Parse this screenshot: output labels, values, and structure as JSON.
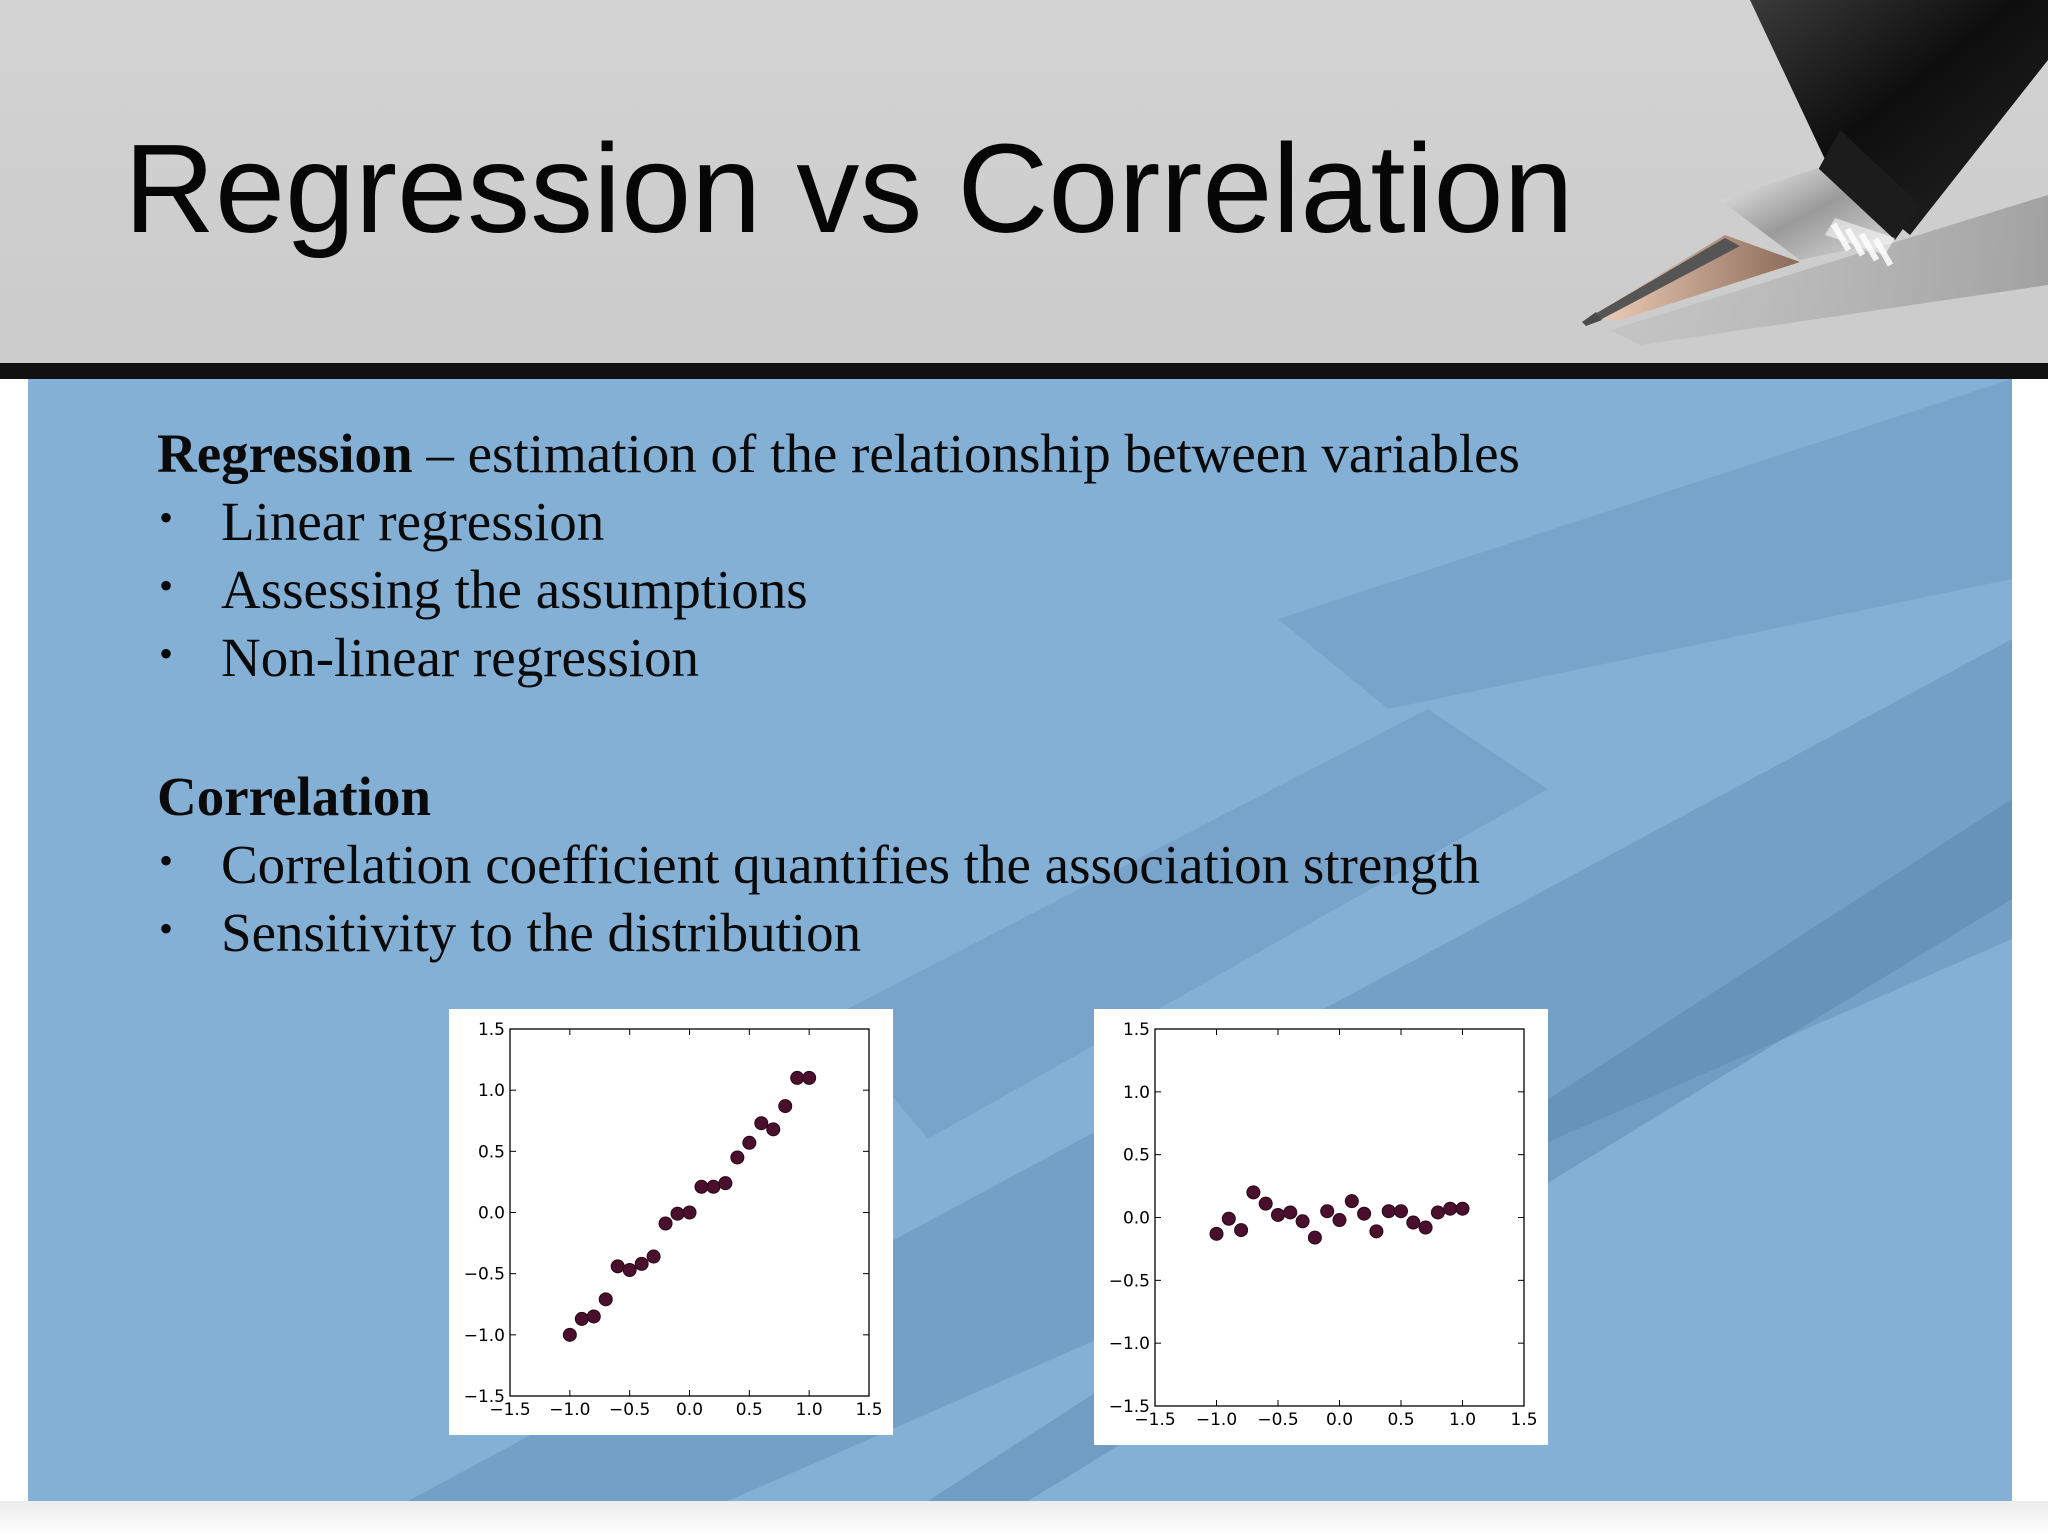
{
  "slide": {
    "title": "Regression vs Correlation",
    "colors": {
      "header": "#cdcdcd",
      "panel": "#84b0d6",
      "text": "#0a0a0a",
      "marker": "#4a0f2d"
    },
    "decorative_image": "fountain-pen"
  },
  "regression": {
    "heading": "Regression",
    "definition": " – estimation of the relationship between variables",
    "bullets": [
      "Linear regression",
      "Assessing the assumptions",
      "Non-linear regression"
    ]
  },
  "correlation": {
    "heading": "Correlation",
    "bullets": [
      "Correlation coefficient quantifies the association strength",
      "Sensitivity to the distribution"
    ]
  },
  "chart_data": [
    {
      "type": "scatter",
      "title": "",
      "xlabel": "",
      "ylabel": "",
      "xlim": [
        -1.5,
        1.5
      ],
      "ylim": [
        -1.5,
        1.5
      ],
      "xticks": [
        "−1.5",
        "−1.0",
        "−0.5",
        "0.0",
        "0.5",
        "1.0",
        "1.5"
      ],
      "yticks": [
        "−1.5",
        "−1.0",
        "−0.5",
        "0.0",
        "0.5",
        "1.0",
        "1.5"
      ],
      "grid": false,
      "marker_color": "#4a0f2d",
      "series": [
        {
          "x": [
            -1.0,
            -0.9,
            -0.8,
            -0.7,
            -0.6,
            -0.5,
            -0.4,
            -0.3,
            -0.2,
            -0.1,
            0.0,
            0.1,
            0.2,
            0.3,
            0.4,
            0.5,
            0.6,
            0.7,
            0.8,
            0.9,
            1.0
          ],
          "y": [
            -1.0,
            -0.87,
            -0.85,
            -0.71,
            -0.44,
            -0.47,
            -0.42,
            -0.36,
            -0.09,
            -0.01,
            0.0,
            0.21,
            0.21,
            0.24,
            0.45,
            0.57,
            0.73,
            0.68,
            0.87,
            1.1,
            1.1
          ]
        }
      ]
    },
    {
      "type": "scatter",
      "title": "",
      "xlabel": "",
      "ylabel": "",
      "xlim": [
        -1.5,
        1.5
      ],
      "ylim": [
        -1.5,
        1.5
      ],
      "xticks": [
        "−1.5",
        "−1.0",
        "−0.5",
        "0.0",
        "0.5",
        "1.0",
        "1.5"
      ],
      "yticks": [
        "−1.5",
        "−1.0",
        "−0.5",
        "0.0",
        "0.5",
        "1.0",
        "1.5"
      ],
      "grid": false,
      "marker_color": "#4a0f2d",
      "series": [
        {
          "x": [
            -1.0,
            -0.9,
            -0.8,
            -0.7,
            -0.6,
            -0.5,
            -0.4,
            -0.3,
            -0.2,
            -0.1,
            0.0,
            0.1,
            0.2,
            0.3,
            0.4,
            0.5,
            0.6,
            0.7,
            0.8,
            0.9,
            1.0
          ],
          "y": [
            -0.13,
            -0.01,
            -0.1,
            0.2,
            0.11,
            0.02,
            0.04,
            -0.03,
            -0.16,
            0.05,
            -0.02,
            0.13,
            0.03,
            -0.11,
            0.05,
            0.05,
            -0.04,
            -0.08,
            0.04,
            0.07,
            0.07
          ]
        }
      ]
    }
  ]
}
